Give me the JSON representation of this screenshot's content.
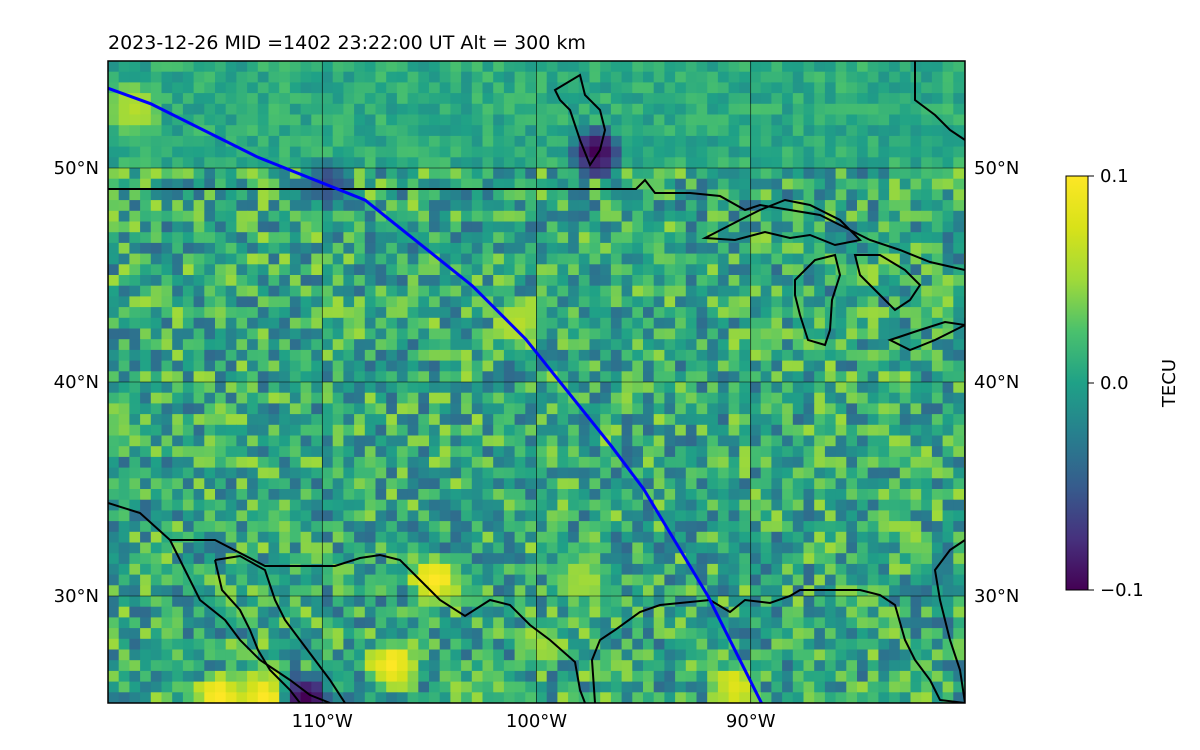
{
  "header": {
    "title": "2023-12-26  MID =1402    23:22:00  UT  Alt = 300 km"
  },
  "map": {
    "projection": "plate-carree",
    "lon_range": [
      -120,
      -80
    ],
    "lat_range": [
      25,
      55
    ],
    "lon_ticks": [
      {
        "value": -110,
        "label": "110°W"
      },
      {
        "value": -100,
        "label": "100°W"
      },
      {
        "value": -90,
        "label": "90°W"
      }
    ],
    "lat_ticks": [
      {
        "value": 50,
        "label": "50°N"
      },
      {
        "value": 40,
        "label": "40°N"
      },
      {
        "value": 30,
        "label": "30°N"
      }
    ],
    "gridlines": true,
    "track_color": "#0000ff",
    "coast_color": "#000000",
    "satellite_track": [
      [
        -123.5,
        55
      ],
      [
        -118,
        53
      ],
      [
        -113,
        50.5
      ],
      [
        -108,
        48.5
      ],
      [
        -105.5,
        46.5
      ],
      [
        -103,
        44.5
      ],
      [
        -100.5,
        42
      ],
      [
        -98.5,
        39.5
      ],
      [
        -96.5,
        37
      ],
      [
        -95,
        35
      ],
      [
        -93.5,
        32.5
      ],
      [
        -92,
        30
      ],
      [
        -90.5,
        27
      ],
      [
        -89.5,
        25
      ]
    ]
  },
  "chart_data": {
    "type": "heatmap",
    "grid": "noise field of TEC perturbation over North America (values -0.1 to 0.1 TECU)",
    "colorbar": {
      "label": "TECU",
      "colormap": "viridis",
      "min": -0.1,
      "max": 0.1,
      "ticks": [
        {
          "value": 0.1,
          "label": "0.1"
        },
        {
          "value": 0.0,
          "label": "0.0"
        },
        {
          "value": -0.1,
          "label": "−0.1"
        }
      ]
    },
    "features": [
      {
        "lon": -97.5,
        "lat": 51,
        "value": -0.1
      },
      {
        "lon": -115,
        "lat": 25.5,
        "value": 0.1
      },
      {
        "lon": -113,
        "lat": 25.5,
        "value": 0.1
      },
      {
        "lon": -111,
        "lat": 25.5,
        "value": -0.1
      },
      {
        "lon": -107,
        "lat": 27,
        "value": 0.1
      },
      {
        "lon": -105,
        "lat": 31,
        "value": 0.1
      },
      {
        "lon": -100,
        "lat": 28,
        "value": 0.05
      },
      {
        "lon": -98,
        "lat": 31,
        "value": 0.05
      },
      {
        "lon": -91,
        "lat": 26,
        "value": 0.08
      },
      {
        "lon": -119,
        "lat": 53,
        "value": 0.06
      },
      {
        "lon": -101,
        "lat": 43,
        "value": 0.06
      },
      {
        "lon": -110,
        "lat": 49.5,
        "value": -0.06
      }
    ]
  }
}
